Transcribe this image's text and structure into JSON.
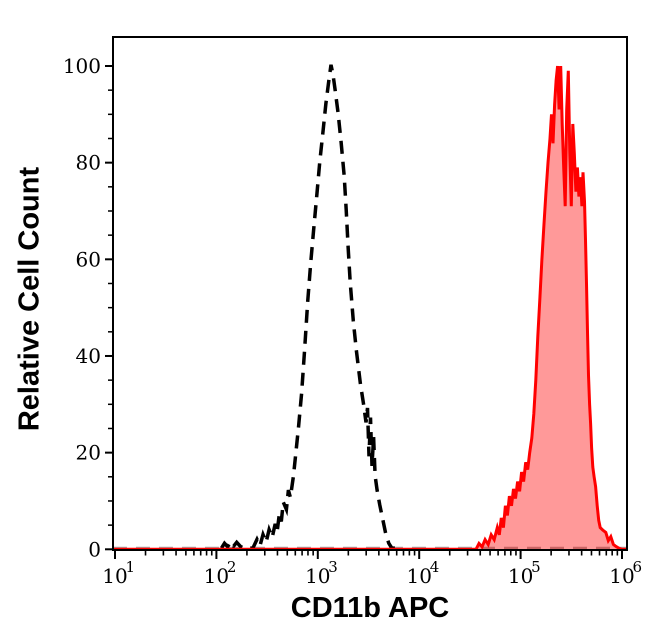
{
  "chart_data": {
    "type": "area",
    "subtype": "flow-cytometry-overlay-histogram",
    "title": "",
    "xlabel": "CD11b APC",
    "ylabel": "Relative Cell Count",
    "xscale": "log10",
    "xlim": [
      10,
      1000000
    ],
    "ylim": [
      0,
      100
    ],
    "grid": false,
    "legend": "none",
    "background": "#ffffff",
    "x_major_ticks": [
      {
        "log": 1,
        "base": "10",
        "exp": "1"
      },
      {
        "log": 2,
        "base": "10",
        "exp": "2"
      },
      {
        "log": 3,
        "base": "10",
        "exp": "3"
      },
      {
        "log": 4,
        "base": "10",
        "exp": "4"
      },
      {
        "log": 5,
        "base": "10",
        "exp": "5"
      },
      {
        "log": 6,
        "base": "10",
        "exp": "6"
      }
    ],
    "x_minor_mantissas": [
      2,
      3,
      4,
      5,
      6,
      7,
      8,
      9
    ],
    "y_major_ticks": [
      {
        "value": 0,
        "label": "0"
      },
      {
        "value": 20,
        "label": "20"
      },
      {
        "value": 40,
        "label": "40"
      },
      {
        "value": 60,
        "label": "60"
      },
      {
        "value": 80,
        "label": "80"
      },
      {
        "value": 100,
        "label": "100"
      }
    ],
    "y_minor_step": 5,
    "baseline": {
      "stroke": "#a8a8a8",
      "dash": [
        14,
        9
      ],
      "width": 2.4
    },
    "series": [
      {
        "name": "unstained-control-open-histogram",
        "line": "dashed",
        "stroke": "#000000",
        "stroke_width": 3.5,
        "dash": [
          13,
          8
        ],
        "fill": "none",
        "peak_x": 1300,
        "peak_y": 100,
        "points_logx_y": [
          [
            2.05,
            0
          ],
          [
            2.08,
            1
          ],
          [
            2.11,
            0.3
          ],
          [
            2.14,
            1.3
          ],
          [
            2.17,
            0.4
          ],
          [
            2.2,
            1.2
          ],
          [
            2.24,
            0.3
          ],
          [
            2.28,
            0
          ],
          [
            2.36,
            0
          ],
          [
            2.4,
            1.8
          ],
          [
            2.43,
            0.5
          ],
          [
            2.46,
            2.8
          ],
          [
            2.49,
            1.2
          ],
          [
            2.52,
            3.8
          ],
          [
            2.55,
            2.2
          ],
          [
            2.58,
            5
          ],
          [
            2.6,
            3.5
          ],
          [
            2.62,
            7
          ],
          [
            2.64,
            5.5
          ],
          [
            2.66,
            9.5
          ],
          [
            2.69,
            8
          ],
          [
            2.71,
            12
          ],
          [
            2.73,
            10.5
          ],
          [
            2.76,
            15
          ],
          [
            2.78,
            19
          ],
          [
            2.81,
            25
          ],
          [
            2.84,
            32
          ],
          [
            2.87,
            41
          ],
          [
            2.9,
            51
          ],
          [
            2.93,
            59
          ],
          [
            2.96,
            66
          ],
          [
            2.99,
            73
          ],
          [
            3.02,
            80
          ],
          [
            3.05,
            86
          ],
          [
            3.08,
            92
          ],
          [
            3.11,
            97
          ],
          [
            3.13,
            100
          ],
          [
            3.15,
            98
          ],
          [
            3.17,
            95
          ],
          [
            3.2,
            90
          ],
          [
            3.23,
            84
          ],
          [
            3.26,
            77
          ],
          [
            3.28,
            70
          ],
          [
            3.3,
            62
          ],
          [
            3.32,
            55
          ],
          [
            3.35,
            47
          ],
          [
            3.38,
            41
          ],
          [
            3.42,
            34
          ],
          [
            3.45,
            30
          ],
          [
            3.475,
            26
          ],
          [
            3.49,
            29
          ],
          [
            3.505,
            19
          ],
          [
            3.52,
            27
          ],
          [
            3.535,
            17
          ],
          [
            3.55,
            23
          ],
          [
            3.565,
            15
          ],
          [
            3.585,
            12
          ],
          [
            3.61,
            9
          ],
          [
            3.64,
            6
          ],
          [
            3.67,
            3
          ],
          [
            3.7,
            1
          ],
          [
            3.73,
            0
          ],
          [
            3.76,
            0
          ]
        ]
      },
      {
        "name": "cd11b-apc-stained-filled-histogram",
        "line": "solid",
        "stroke": "#ff0000",
        "stroke_width": 3,
        "dash": null,
        "fill": "rgba(255,0,0,0.4)",
        "peak_x": 240000,
        "peak_y": 100,
        "points_logx_y": [
          [
            4.56,
            0
          ],
          [
            4.59,
            1.2
          ],
          [
            4.62,
            0.5
          ],
          [
            4.65,
            2
          ],
          [
            4.68,
            1
          ],
          [
            4.71,
            3
          ],
          [
            4.74,
            2
          ],
          [
            4.77,
            4.5
          ],
          [
            4.79,
            3
          ],
          [
            4.81,
            6.5
          ],
          [
            4.83,
            4.5
          ],
          [
            4.85,
            9
          ],
          [
            4.87,
            7
          ],
          [
            4.89,
            11
          ],
          [
            4.91,
            9
          ],
          [
            4.93,
            12.5
          ],
          [
            4.95,
            10.5
          ],
          [
            4.97,
            14
          ],
          [
            4.99,
            12
          ],
          [
            5.01,
            16
          ],
          [
            5.03,
            14
          ],
          [
            5.05,
            18
          ],
          [
            5.07,
            16.5
          ],
          [
            5.09,
            20
          ],
          [
            5.11,
            23
          ],
          [
            5.13,
            28
          ],
          [
            5.15,
            35
          ],
          [
            5.17,
            44
          ],
          [
            5.19,
            52
          ],
          [
            5.21,
            60
          ],
          [
            5.23,
            67
          ],
          [
            5.25,
            74
          ],
          [
            5.27,
            80
          ],
          [
            5.29,
            85
          ],
          [
            5.305,
            90
          ],
          [
            5.32,
            84
          ],
          [
            5.335,
            92
          ],
          [
            5.35,
            97
          ],
          [
            5.365,
            100
          ],
          [
            5.38,
            91
          ],
          [
            5.395,
            100
          ],
          [
            5.41,
            88
          ],
          [
            5.425,
            79
          ],
          [
            5.44,
            71
          ],
          [
            5.455,
            91
          ],
          [
            5.47,
            99
          ],
          [
            5.485,
            82
          ],
          [
            5.5,
            71
          ],
          [
            5.515,
            88
          ],
          [
            5.53,
            82
          ],
          [
            5.545,
            74
          ],
          [
            5.56,
            79
          ],
          [
            5.575,
            73
          ],
          [
            5.59,
            77
          ],
          [
            5.605,
            71
          ],
          [
            5.615,
            78
          ],
          [
            5.63,
            72
          ],
          [
            5.64,
            64
          ],
          [
            5.65,
            55
          ],
          [
            5.66,
            45
          ],
          [
            5.67,
            36
          ],
          [
            5.68,
            30
          ],
          [
            5.69,
            26
          ],
          [
            5.7,
            21
          ],
          [
            5.712,
            17
          ],
          [
            5.725,
            15
          ],
          [
            5.74,
            13
          ],
          [
            5.755,
            9
          ],
          [
            5.77,
            6
          ],
          [
            5.785,
            4.5
          ],
          [
            5.81,
            4
          ],
          [
            5.84,
            3.5
          ],
          [
            5.865,
            1.8
          ],
          [
            5.89,
            2.6
          ],
          [
            5.915,
            1
          ],
          [
            5.94,
            0.6
          ],
          [
            5.97,
            0.2
          ],
          [
            6.0,
            0
          ]
        ]
      }
    ]
  }
}
